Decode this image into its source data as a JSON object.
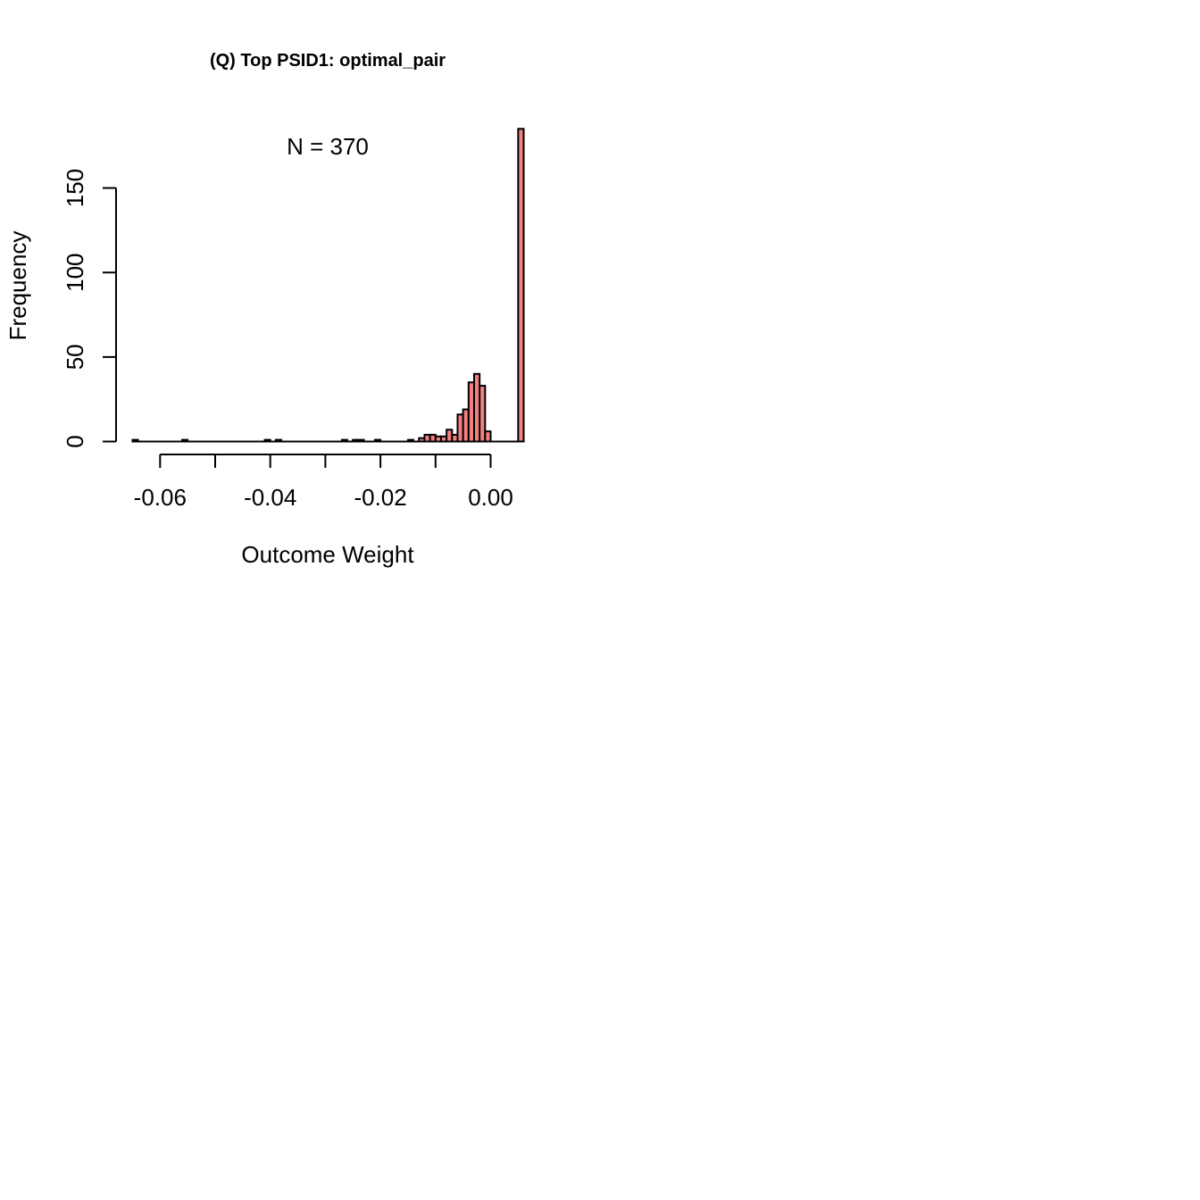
{
  "chart_data": {
    "type": "bar",
    "title": "(Q) Top PSID1: optimal_pair",
    "annotation": "N = 370",
    "xlabel": "Outcome Weight",
    "ylabel": "Frequency",
    "bin_width": 0.001,
    "xlim": [
      -0.068,
      0.0062
    ],
    "ylim": [
      0,
      185
    ],
    "x_ticks": [
      -0.06,
      -0.05,
      -0.04,
      -0.03,
      -0.02,
      -0.01,
      0.0
    ],
    "x_tick_labels": [
      "-0.06",
      "",
      "-0.04",
      "",
      "-0.02",
      "",
      "0.00"
    ],
    "y_ticks": [
      0,
      50,
      100,
      150
    ],
    "y_tick_labels": [
      "0",
      "50",
      "100",
      "150"
    ],
    "bar_color": "#F28080",
    "bars": [
      {
        "x0": -0.065,
        "x1": -0.064,
        "count": 1
      },
      {
        "x0": -0.056,
        "x1": -0.055,
        "count": 1
      },
      {
        "x0": -0.041,
        "x1": -0.04,
        "count": 1
      },
      {
        "x0": -0.039,
        "x1": -0.038,
        "count": 1
      },
      {
        "x0": -0.027,
        "x1": -0.026,
        "count": 1
      },
      {
        "x0": -0.025,
        "x1": -0.024,
        "count": 1
      },
      {
        "x0": -0.024,
        "x1": -0.023,
        "count": 1
      },
      {
        "x0": -0.021,
        "x1": -0.02,
        "count": 1
      },
      {
        "x0": -0.015,
        "x1": -0.014,
        "count": 1
      },
      {
        "x0": -0.013,
        "x1": -0.012,
        "count": 2
      },
      {
        "x0": -0.012,
        "x1": -0.011,
        "count": 4
      },
      {
        "x0": -0.011,
        "x1": -0.01,
        "count": 4
      },
      {
        "x0": -0.01,
        "x1": -0.009,
        "count": 3
      },
      {
        "x0": -0.009,
        "x1": -0.008,
        "count": 3
      },
      {
        "x0": -0.008,
        "x1": -0.007,
        "count": 7
      },
      {
        "x0": -0.007,
        "x1": -0.006,
        "count": 4
      },
      {
        "x0": -0.006,
        "x1": -0.005,
        "count": 16
      },
      {
        "x0": -0.005,
        "x1": -0.004,
        "count": 19
      },
      {
        "x0": -0.004,
        "x1": -0.003,
        "count": 35
      },
      {
        "x0": -0.003,
        "x1": -0.002,
        "count": 40
      },
      {
        "x0": -0.002,
        "x1": -0.001,
        "count": 33
      },
      {
        "x0": -0.001,
        "x1": 0.0,
        "count": 6
      },
      {
        "x0": 0.005,
        "x1": 0.006,
        "count": 185
      }
    ]
  }
}
